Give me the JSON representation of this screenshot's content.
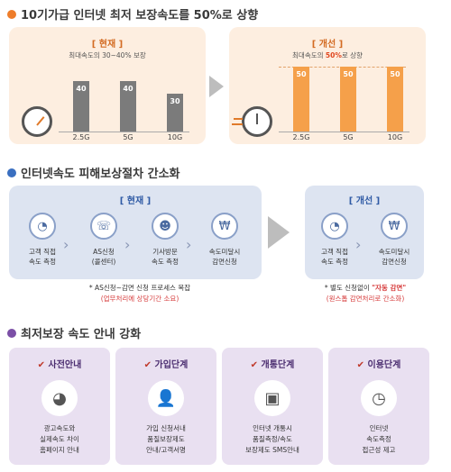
{
  "s1": {
    "title": "10기가급 인터넷 최저 보장속도를 50%로 상향",
    "cur": {
      "tag": "[ 현재 ]",
      "sub": "최대속도의 30~40% 보장",
      "bars": [
        {
          "cat": "2.5G",
          "val": "40"
        },
        {
          "cat": "5G",
          "val": "40"
        },
        {
          "cat": "10G",
          "val": "30"
        }
      ]
    },
    "imp": {
      "tag": "[ 개선 ]",
      "sub_a": "최대속도의 ",
      "sub_b": "50%",
      "sub_c": "로 상향",
      "bars": [
        {
          "cat": "2.5G",
          "val": "50"
        },
        {
          "cat": "5G",
          "val": "50"
        },
        {
          "cat": "10G",
          "val": "50"
        }
      ]
    }
  },
  "s2": {
    "title": "인터넷속도 피해보상절차 간소화",
    "cur": {
      "tag": "[ 현재 ]",
      "items": [
        {
          "l1": "고객 직접",
          "l2": "속도 측정"
        },
        {
          "l1": "AS신청",
          "l2": "(콜센터)"
        },
        {
          "l1": "기사방문",
          "l2": "속도 측정"
        },
        {
          "l1": "속도미달시",
          "l2": "감면신청"
        }
      ],
      "note1": "* AS신청~감면 신청 프로세스 복잡",
      "note2": "(업무처리에 상당기간 소요)"
    },
    "imp": {
      "tag": "[ 개선 ]",
      "items": [
        {
          "l1": "고객 직접",
          "l2": "속도 측정"
        },
        {
          "l1": "속도미달시",
          "l2": "감면신청"
        }
      ],
      "note1a": "* 별도 신청없이 ",
      "note1b": "\"자동 감면\"",
      "note2": "(원스톱 감면처리로 간소화)"
    }
  },
  "s3": {
    "title": "최저보장 속도 안내 강화",
    "cards": [
      {
        "t": "사전안내",
        "l1": "광고속도와",
        "l2": "실제속도 차이",
        "l3": "홈페이지 안내"
      },
      {
        "t": "가입단계",
        "l1": "가입 신청서내",
        "l2": "품질보장제도",
        "l3": "안내/고객서명"
      },
      {
        "t": "개통단계",
        "l1": "인터넷 개통시",
        "l2": "품질측정/속도",
        "l3": "보장제도 SMS안내"
      },
      {
        "t": "이용단계",
        "l1": "인터넷",
        "l2": "속도측정",
        "l3": "접근성 제고"
      }
    ]
  },
  "colors": {
    "orange": "#ee7d2a",
    "blue": "#3a6fc0",
    "purple": "#7b4fa6"
  }
}
